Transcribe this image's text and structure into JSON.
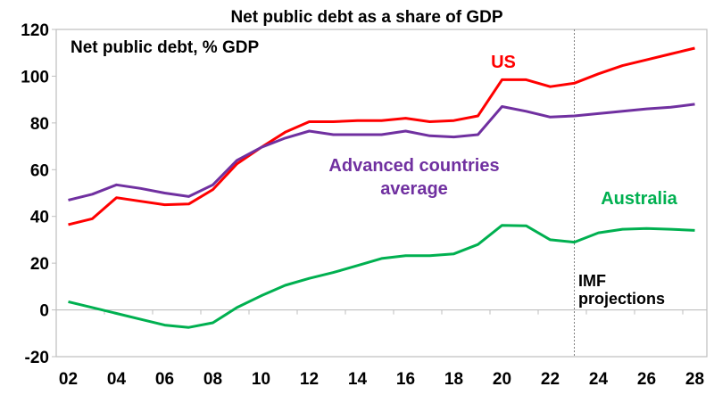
{
  "chart_data": {
    "type": "line",
    "title": "Net public debt as a share of GDP",
    "subtitle": "Net public debt, % GDP",
    "xlabel": "",
    "ylabel": "",
    "xlim": [
      2001.5,
      2028.5
    ],
    "ylim": [
      -20,
      120
    ],
    "yticks": [
      -20,
      0,
      20,
      40,
      60,
      80,
      100,
      120
    ],
    "xtick_labels": [
      {
        "year": 2002,
        "label": "02"
      },
      {
        "year": 2004,
        "label": "04"
      },
      {
        "year": 2006,
        "label": "06"
      },
      {
        "year": 2008,
        "label": "08"
      },
      {
        "year": 2010,
        "label": "10"
      },
      {
        "year": 2012,
        "label": "12"
      },
      {
        "year": 2014,
        "label": "14"
      },
      {
        "year": 2016,
        "label": "16"
      },
      {
        "year": 2018,
        "label": "18"
      },
      {
        "year": 2020,
        "label": "20"
      },
      {
        "year": 2022,
        "label": "22"
      },
      {
        "year": 2024,
        "label": "24"
      },
      {
        "year": 2026,
        "label": "26"
      },
      {
        "year": 2028,
        "label": "28"
      }
    ],
    "grid": false,
    "x": [
      2002,
      2003,
      2004,
      2005,
      2006,
      2007,
      2008,
      2009,
      2010,
      2011,
      2012,
      2013,
      2014,
      2015,
      2016,
      2017,
      2018,
      2019,
      2020,
      2021,
      2022,
      2023,
      2024,
      2025,
      2026,
      2027,
      2028
    ],
    "series": [
      {
        "name": "US",
        "color": "#ff0000",
        "values": [
          36.5,
          39,
          48,
          46.5,
          45,
          45.3,
          51.5,
          62.5,
          69.5,
          76,
          80.5,
          80.5,
          81,
          81,
          82,
          80.5,
          81,
          83,
          98.5,
          98.5,
          95.5,
          97,
          101,
          104.5,
          107,
          109.5,
          112
        ]
      },
      {
        "name": "Advanced countries average",
        "color": "#7030a0",
        "values": [
          47,
          49.5,
          53.5,
          52,
          50,
          48.5,
          53.5,
          64,
          69.5,
          73.5,
          76.5,
          75,
          75,
          75,
          76.5,
          74.5,
          74,
          75,
          87,
          85,
          82.5,
          83,
          84,
          85,
          86,
          86.7,
          88
        ]
      },
      {
        "name": "Australia",
        "color": "#00b050",
        "values": [
          3.5,
          1,
          -1.5,
          -4,
          -6.5,
          -7.5,
          -5.5,
          1,
          6,
          10.5,
          13.5,
          16,
          19,
          22,
          23.2,
          23.2,
          24,
          28,
          36.2,
          36,
          30,
          29,
          33,
          34.5,
          34.8,
          34.5,
          34
        ]
      }
    ],
    "annotations": {
      "projection_start_year": 2023,
      "projection_label_line1": "IMF",
      "projection_label_line2": "projections",
      "us_label": "US",
      "adv_label_line1": "Advanced countries",
      "adv_label_line2": "average",
      "aus_label": "Australia"
    }
  }
}
